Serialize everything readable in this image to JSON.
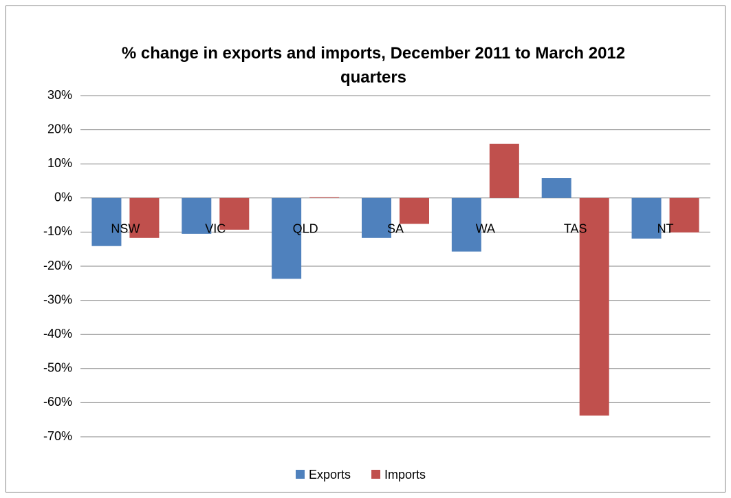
{
  "chart_data": {
    "type": "bar",
    "title": "% change in exports and imports, December 2011 to March 2012 quarters",
    "categories": [
      "NSW",
      "VIC",
      "QLD",
      "SA",
      "WA",
      "TAS",
      "NT"
    ],
    "series": [
      {
        "name": "Exports",
        "color": "#4f81bd",
        "values": [
          -14.1,
          -10.5,
          -23.7,
          -11.7,
          -15.7,
          5.8,
          -11.9
        ]
      },
      {
        "name": "Imports",
        "color": "#c0504d",
        "values": [
          -11.7,
          -9.3,
          0.2,
          -7.6,
          15.9,
          -63.8,
          -10.1
        ]
      }
    ],
    "ylim": [
      -70,
      30
    ],
    "yticks": [
      {
        "value": -70,
        "label": "-70%"
      },
      {
        "value": -60,
        "label": "-60%"
      },
      {
        "value": -50,
        "label": "-50%"
      },
      {
        "value": -40,
        "label": "-40%"
      },
      {
        "value": -30,
        "label": "-30%"
      },
      {
        "value": -20,
        "label": "-20%"
      },
      {
        "value": -10,
        "label": "-10%"
      },
      {
        "value": 0,
        "label": "0%"
      },
      {
        "value": 10,
        "label": "10%"
      },
      {
        "value": 20,
        "label": "20%"
      },
      {
        "value": 30,
        "label": "30%"
      }
    ],
    "grid": true,
    "legend": "bottom"
  }
}
